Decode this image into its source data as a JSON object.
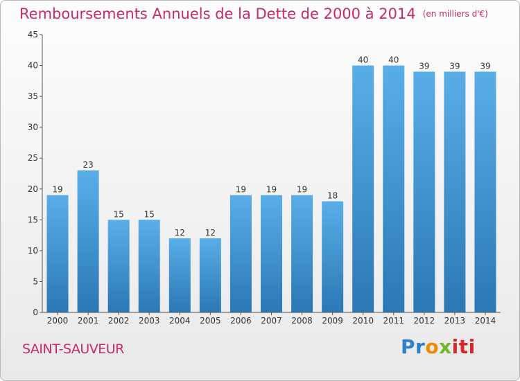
{
  "header": {
    "title": "Remboursements Annuels de la Dette de 2000 à 2014",
    "unit": "(en milliers d'€)"
  },
  "footer": {
    "city": "SAINT-SAUVEUR",
    "logo_text": "Proxiti"
  },
  "colors": {
    "title": "#c72a6c",
    "bar_top": "#5aaee8",
    "bar_bottom": "#2a78b5"
  },
  "chart_data": {
    "type": "bar",
    "title": "Remboursements Annuels de la Dette de 2000 à 2014",
    "subtitle": "(en milliers d'€)",
    "xlabel": "",
    "ylabel": "",
    "categories": [
      "2000",
      "2001",
      "2002",
      "2003",
      "2004",
      "2005",
      "2006",
      "2007",
      "2008",
      "2009",
      "2010",
      "2011",
      "2012",
      "2013",
      "2014"
    ],
    "values": [
      19,
      23,
      15,
      15,
      12,
      12,
      19,
      19,
      19,
      18,
      40,
      40,
      39,
      39,
      39
    ],
    "ylim": [
      0,
      45
    ],
    "yticks": [
      0,
      5,
      10,
      15,
      20,
      25,
      30,
      35,
      40,
      45
    ],
    "grid": false,
    "data_labels": true
  }
}
